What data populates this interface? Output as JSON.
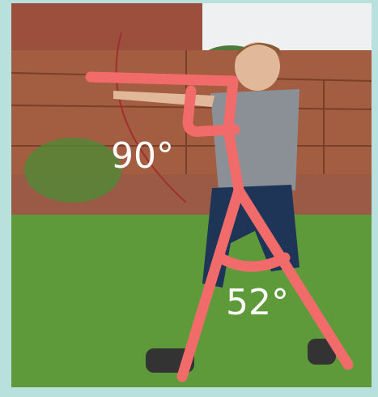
{
  "annotations": [
    {
      "label": "90°"
    },
    {
      "label": "52°"
    }
  ]
}
